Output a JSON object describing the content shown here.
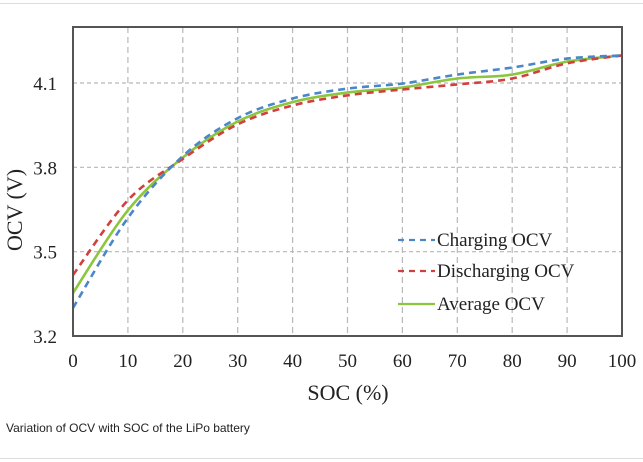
{
  "caption": "Variation of OCV with SOC of the LiPo battery",
  "chart_data": {
    "type": "line",
    "title": "",
    "xlabel": "SOC (%)",
    "ylabel": "OCV (V)",
    "xlim": [
      0,
      100
    ],
    "ylim": [
      3.2,
      4.3
    ],
    "xticks": [
      0,
      10,
      20,
      30,
      40,
      50,
      60,
      70,
      80,
      90,
      100
    ],
    "xtick_labels": [
      "0",
      "10",
      "20",
      "30",
      "40",
      "50",
      "60",
      "70",
      "80",
      "90",
      "100"
    ],
    "yticks": [
      3.2,
      3.5,
      3.8,
      4.1
    ],
    "ytick_labels": [
      "3.2",
      "3.5",
      "3.8",
      "4.1"
    ],
    "grid": true,
    "legend_position": "center-right",
    "x": [
      0,
      10,
      20,
      30,
      40,
      50,
      60,
      70,
      80,
      90,
      100
    ],
    "series": [
      {
        "name": "Charging OCV",
        "color": "#4a86c8",
        "style": "dashed",
        "values": [
          3.3,
          3.62,
          3.84,
          3.975,
          4.045,
          4.08,
          4.098,
          4.13,
          4.155,
          4.187,
          4.198
        ]
      },
      {
        "name": "Discharging OCV",
        "color": "#d0403c",
        "style": "dashed",
        "values": [
          3.417,
          3.683,
          3.83,
          3.953,
          4.02,
          4.056,
          4.077,
          4.095,
          4.116,
          4.17,
          4.198
        ]
      },
      {
        "name": "Average OCV",
        "color": "#8cc63f",
        "style": "solid",
        "values": [
          3.353,
          3.647,
          3.835,
          3.963,
          4.032,
          4.066,
          4.084,
          4.116,
          4.13,
          4.176,
          4.198
        ]
      }
    ]
  }
}
